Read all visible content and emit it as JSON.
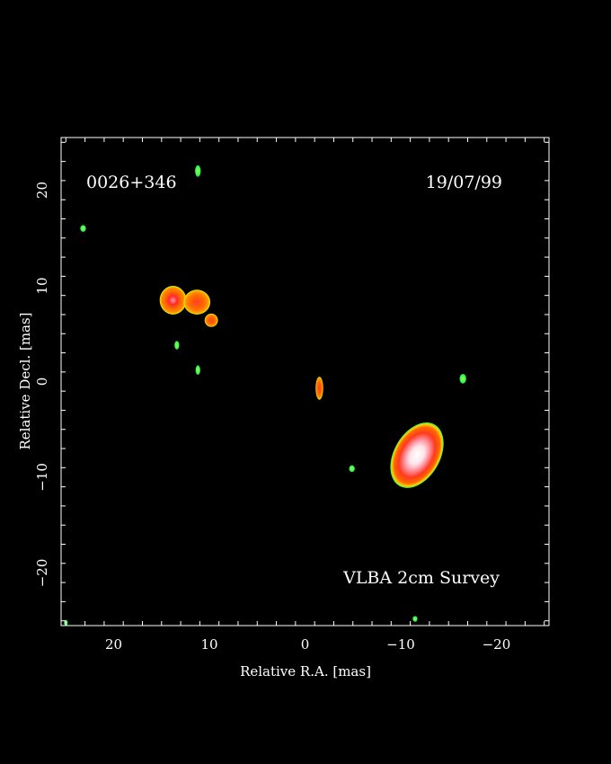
{
  "chart_data": {
    "type": "heatmap",
    "source_label": "0026+346",
    "date_label": "19/07/99",
    "survey_label": "VLBA 2cm Survey",
    "xlabel": "Relative R.A. [mas]",
    "ylabel": "Relative Decl. [mas]",
    "xlim": [
      25.5,
      -25.5
    ],
    "ylim": [
      -25.5,
      25.5
    ],
    "x_ticks": [
      20,
      10,
      0,
      -10,
      -20
    ],
    "x_tick_labels": [
      "20",
      "10",
      "0",
      "−10",
      "−20"
    ],
    "y_ticks": [
      20,
      10,
      0,
      -10,
      -20
    ],
    "y_tick_labels": [
      "20",
      "10",
      "0",
      "−10",
      "−20"
    ],
    "colors": {
      "background": "#000000",
      "axes": "#ffffff",
      "low": "#33ff55",
      "mid_low": "#ffcc00",
      "mid": "#ff6a00",
      "mid_high": "#ff3a1e",
      "high": "#ff9fa8",
      "peak": "#ffffff"
    },
    "components": [
      {
        "name": "core",
        "x": -11.7,
        "y": -7.7,
        "size_x": 2.4,
        "size_y": 3.7,
        "pa_deg": 30,
        "level": "peak"
      },
      {
        "name": "jet-east-a",
        "x": 13.8,
        "y": 8.5,
        "size_x": 1.4,
        "size_y": 1.5,
        "pa_deg": 0,
        "level": "mid_high"
      },
      {
        "name": "jet-east-b",
        "x": 11.3,
        "y": 8.3,
        "size_x": 1.4,
        "size_y": 1.3,
        "pa_deg": 0,
        "level": "mid"
      },
      {
        "name": "jet-east-c",
        "x": 9.8,
        "y": 6.4,
        "size_x": 0.7,
        "size_y": 0.7,
        "pa_deg": 0,
        "level": "mid"
      },
      {
        "name": "knot-mid",
        "x": -1.5,
        "y": -0.7,
        "size_x": 0.4,
        "size_y": 1.2,
        "pa_deg": 0,
        "level": "mid"
      },
      {
        "name": "spot-north",
        "x": 11.2,
        "y": 22.0,
        "size_x": 0.3,
        "size_y": 0.6,
        "pa_deg": 0,
        "level": "low"
      },
      {
        "name": "spot-northeast",
        "x": 23.2,
        "y": 16.0,
        "size_x": 0.3,
        "size_y": 0.35,
        "pa_deg": 0,
        "level": "low"
      },
      {
        "name": "spot-east-1",
        "x": 13.4,
        "y": 3.8,
        "size_x": 0.25,
        "size_y": 0.45,
        "pa_deg": 0,
        "level": "low"
      },
      {
        "name": "spot-east-2",
        "x": 11.2,
        "y": 1.2,
        "size_x": 0.25,
        "size_y": 0.5,
        "pa_deg": 0,
        "level": "low"
      },
      {
        "name": "spot-west",
        "x": -16.5,
        "y": 0.3,
        "size_x": 0.35,
        "size_y": 0.5,
        "pa_deg": 0,
        "level": "low"
      },
      {
        "name": "spot-southwest",
        "x": -4.9,
        "y": -9.1,
        "size_x": 0.3,
        "size_y": 0.35,
        "pa_deg": 0,
        "level": "low"
      },
      {
        "name": "spot-south",
        "x": -11.5,
        "y": -24.8,
        "size_x": 0.25,
        "size_y": 0.3,
        "pa_deg": 0,
        "level": "low"
      },
      {
        "name": "spot-southeast",
        "x": 25.0,
        "y": -25.2,
        "size_x": 0.2,
        "size_y": 0.3,
        "pa_deg": 0,
        "level": "low"
      }
    ]
  }
}
